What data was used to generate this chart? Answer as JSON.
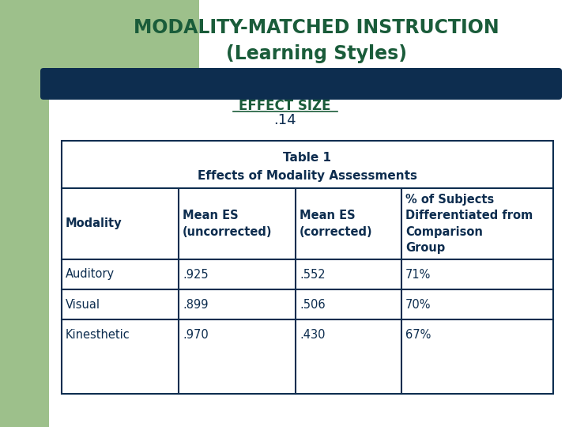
{
  "title_line1": "MODALITY-MATCHED INSTRUCTION",
  "title_line2": "(Learning Styles)",
  "title_color": "#1a5c3a",
  "title_fontsize": 17,
  "banner_color": "#0d2d4f",
  "banner_text": "EFFECT SIZE",
  "effect_size_value": ".14",
  "effect_size_color": "#0d2d4f",
  "bg_color": "#ffffff",
  "left_panel_color": "#9dc08b",
  "top_panel_color": "#9dc08b",
  "table_title_line1": "Table 1",
  "table_title_line2": "Effects of Modality Assessments",
  "table_header_col0": "Modality",
  "table_header_col1": "Mean ES\n(uncorrected)",
  "table_header_col2": "Mean ES\n(corrected)",
  "table_header_col3": "% of Subjects\nDifferentiated from\nComparison\nGroup",
  "table_data": [
    [
      "Auditory",
      ".925",
      ".552",
      "71%"
    ],
    [
      "Visual",
      ".899",
      ".506",
      "70%"
    ],
    [
      "Kinesthetic",
      ".970",
      ".430",
      "67%"
    ]
  ],
  "table_text_color": "#0d2d4f",
  "table_border_color": "#0d2d4f",
  "table_title_fontsize": 11,
  "table_header_fontsize": 10.5,
  "table_data_fontsize": 10.5,
  "effect_size_fontsize": 12,
  "effect_size_val_fontsize": 13
}
